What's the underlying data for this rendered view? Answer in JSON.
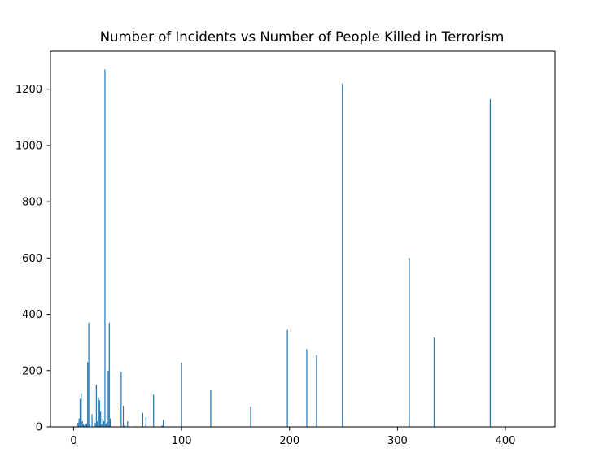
{
  "chart_data": {
    "type": "bar",
    "title": "Number of Incidents vs Number of People Killed in Terrorism",
    "xlabel": "",
    "ylabel": "",
    "xlim": [
      -21.5,
      446
    ],
    "ylim": [
      0,
      1335
    ],
    "xticks": [
      0,
      100,
      200,
      300,
      400
    ],
    "yticks": [
      0,
      200,
      400,
      600,
      800,
      1000,
      1200
    ],
    "grid": false,
    "bar_color": "#1f77b4",
    "x": [
      4,
      5,
      6,
      7,
      8,
      9,
      10,
      11,
      12,
      13,
      14,
      15,
      17,
      20,
      21,
      22,
      23,
      24,
      25,
      26,
      27,
      28,
      29,
      30,
      31,
      32,
      33,
      34,
      44,
      46,
      47,
      50,
      58,
      64,
      67,
      74,
      82,
      83,
      100,
      127,
      164,
      198,
      216,
      225,
      249,
      311,
      334,
      386
    ],
    "values": [
      15,
      30,
      100,
      120,
      20,
      10,
      5,
      10,
      12,
      230,
      370,
      10,
      45,
      15,
      150,
      20,
      103,
      95,
      55,
      10,
      30,
      20,
      1270,
      12,
      18,
      200,
      370,
      30,
      195,
      75,
      5,
      20,
      2,
      50,
      35,
      115,
      5,
      25,
      228,
      130,
      72,
      345,
      277,
      255,
      1220,
      600,
      318,
      1165
    ]
  }
}
